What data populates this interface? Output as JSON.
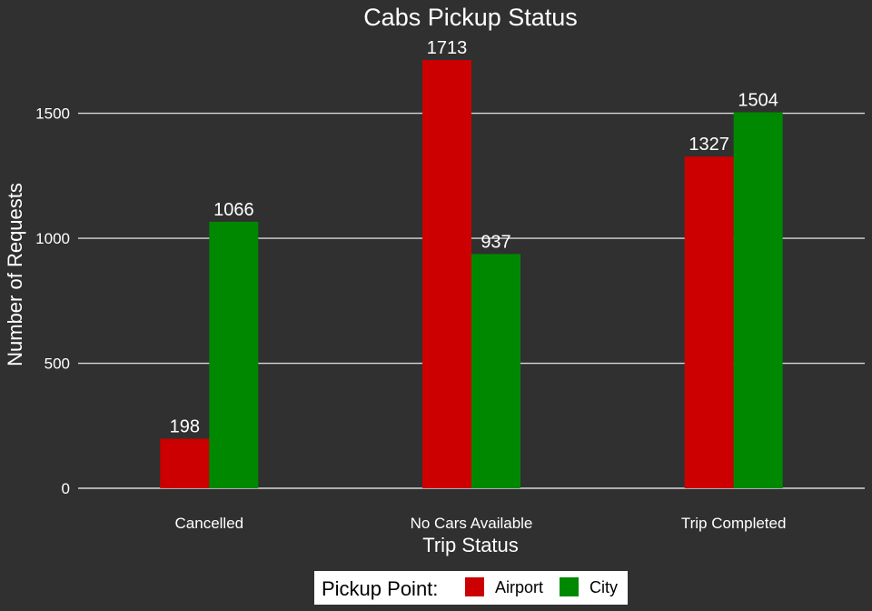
{
  "chart_data": {
    "type": "bar",
    "title": "Cabs Pickup Status",
    "xlabel": "Trip Status",
    "ylabel": "Number of Requests",
    "categories": [
      "Cancelled",
      "No Cars Available",
      "Trip Completed"
    ],
    "series": [
      {
        "name": "Airport",
        "color": "#cc0000",
        "values": [
          198,
          1713,
          1327
        ]
      },
      {
        "name": "City",
        "color": "#008800",
        "values": [
          1066,
          937,
          1504
        ]
      }
    ],
    "yticks": [
      0,
      500,
      1000,
      1500
    ],
    "ylim": [
      0,
      1713
    ],
    "grid": "horizontal",
    "legend": {
      "title": "Pickup Point:",
      "position": "bottom"
    },
    "colors": {
      "background": "#303030",
      "text": "#ffffff",
      "grid": "#d8d8d8"
    }
  }
}
